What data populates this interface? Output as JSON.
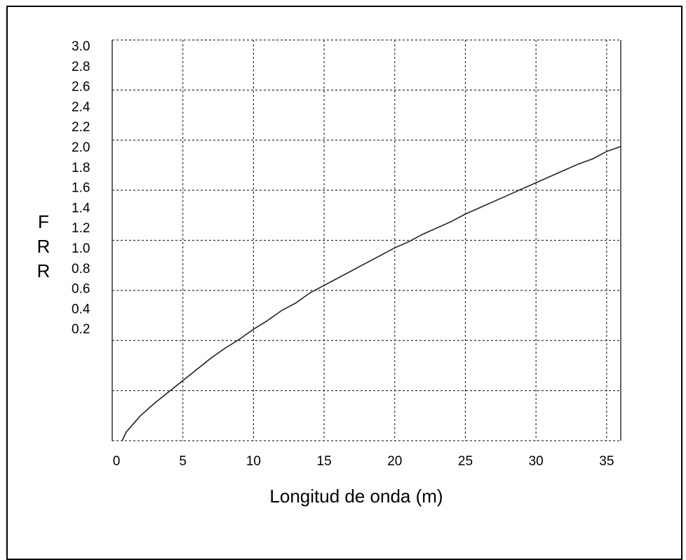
{
  "chart_data": {
    "type": "line",
    "title": "",
    "xlabel": "Longitud de onda (m)",
    "ylabel": "FRR",
    "ylabel_letters": [
      "F",
      "R",
      "R"
    ],
    "xlim": [
      0,
      36
    ],
    "ylim": [
      -0.2,
      3.0
    ],
    "grid": true,
    "line_color": "#222222",
    "x_ticks": [
      {
        "label": "0",
        "value": 0
      },
      {
        "label": "5",
        "value": 5
      },
      {
        "label": "10",
        "value": 10
      },
      {
        "label": "15",
        "value": 15
      },
      {
        "label": "20",
        "value": 20
      },
      {
        "label": "25",
        "value": 25
      },
      {
        "label": "30",
        "value": 30
      },
      {
        "label": "35",
        "value": 35
      }
    ],
    "y_ticks": [
      {
        "label": "3.0",
        "value": 3.0
      },
      {
        "label": "2.8",
        "value": 2.8
      },
      {
        "label": "2.6",
        "value": 2.6
      },
      {
        "label": "2.4",
        "value": 2.4
      },
      {
        "label": "2.2",
        "value": 2.2
      },
      {
        "label": "2.0",
        "value": 2.0
      },
      {
        "label": "1.8",
        "value": 1.8
      },
      {
        "label": "1.6",
        "value": 1.6
      },
      {
        "label": "1.4",
        "value": 1.4
      },
      {
        "label": "1.2",
        "value": 1.2
      },
      {
        "label": "1.0",
        "value": 1.0
      },
      {
        "label": "0.8",
        "value": 0.8
      },
      {
        "label": "0.6",
        "value": 0.6
      },
      {
        "label": "0.4",
        "value": 0.4
      },
      {
        "label": "0.2",
        "value": 0.2
      }
    ],
    "x_grid": [
      0,
      5,
      10,
      15,
      20,
      25,
      30,
      35
    ],
    "y_grid": [
      3.0,
      2.6,
      2.2,
      1.8,
      1.4,
      1.0,
      0.6,
      0.2,
      -0.2
    ],
    "series": [
      {
        "x": [
          0.7,
          1,
          2,
          3,
          4,
          5,
          6,
          7,
          8,
          9,
          10,
          11,
          12,
          13,
          14,
          15,
          16,
          17,
          18,
          19,
          20,
          21,
          22,
          23,
          24,
          25,
          26,
          27,
          28,
          29,
          30,
          31,
          32,
          33,
          34,
          35,
          36
        ],
        "y": [
          -0.2,
          -0.13,
          0.0,
          0.1,
          0.19,
          0.28,
          0.37,
          0.46,
          0.54,
          0.61,
          0.69,
          0.76,
          0.84,
          0.9,
          0.98,
          1.04,
          1.1,
          1.16,
          1.22,
          1.28,
          1.34,
          1.39,
          1.45,
          1.5,
          1.55,
          1.61,
          1.66,
          1.71,
          1.76,
          1.81,
          1.86,
          1.91,
          1.96,
          2.01,
          2.05,
          2.11,
          2.15
        ]
      }
    ]
  }
}
